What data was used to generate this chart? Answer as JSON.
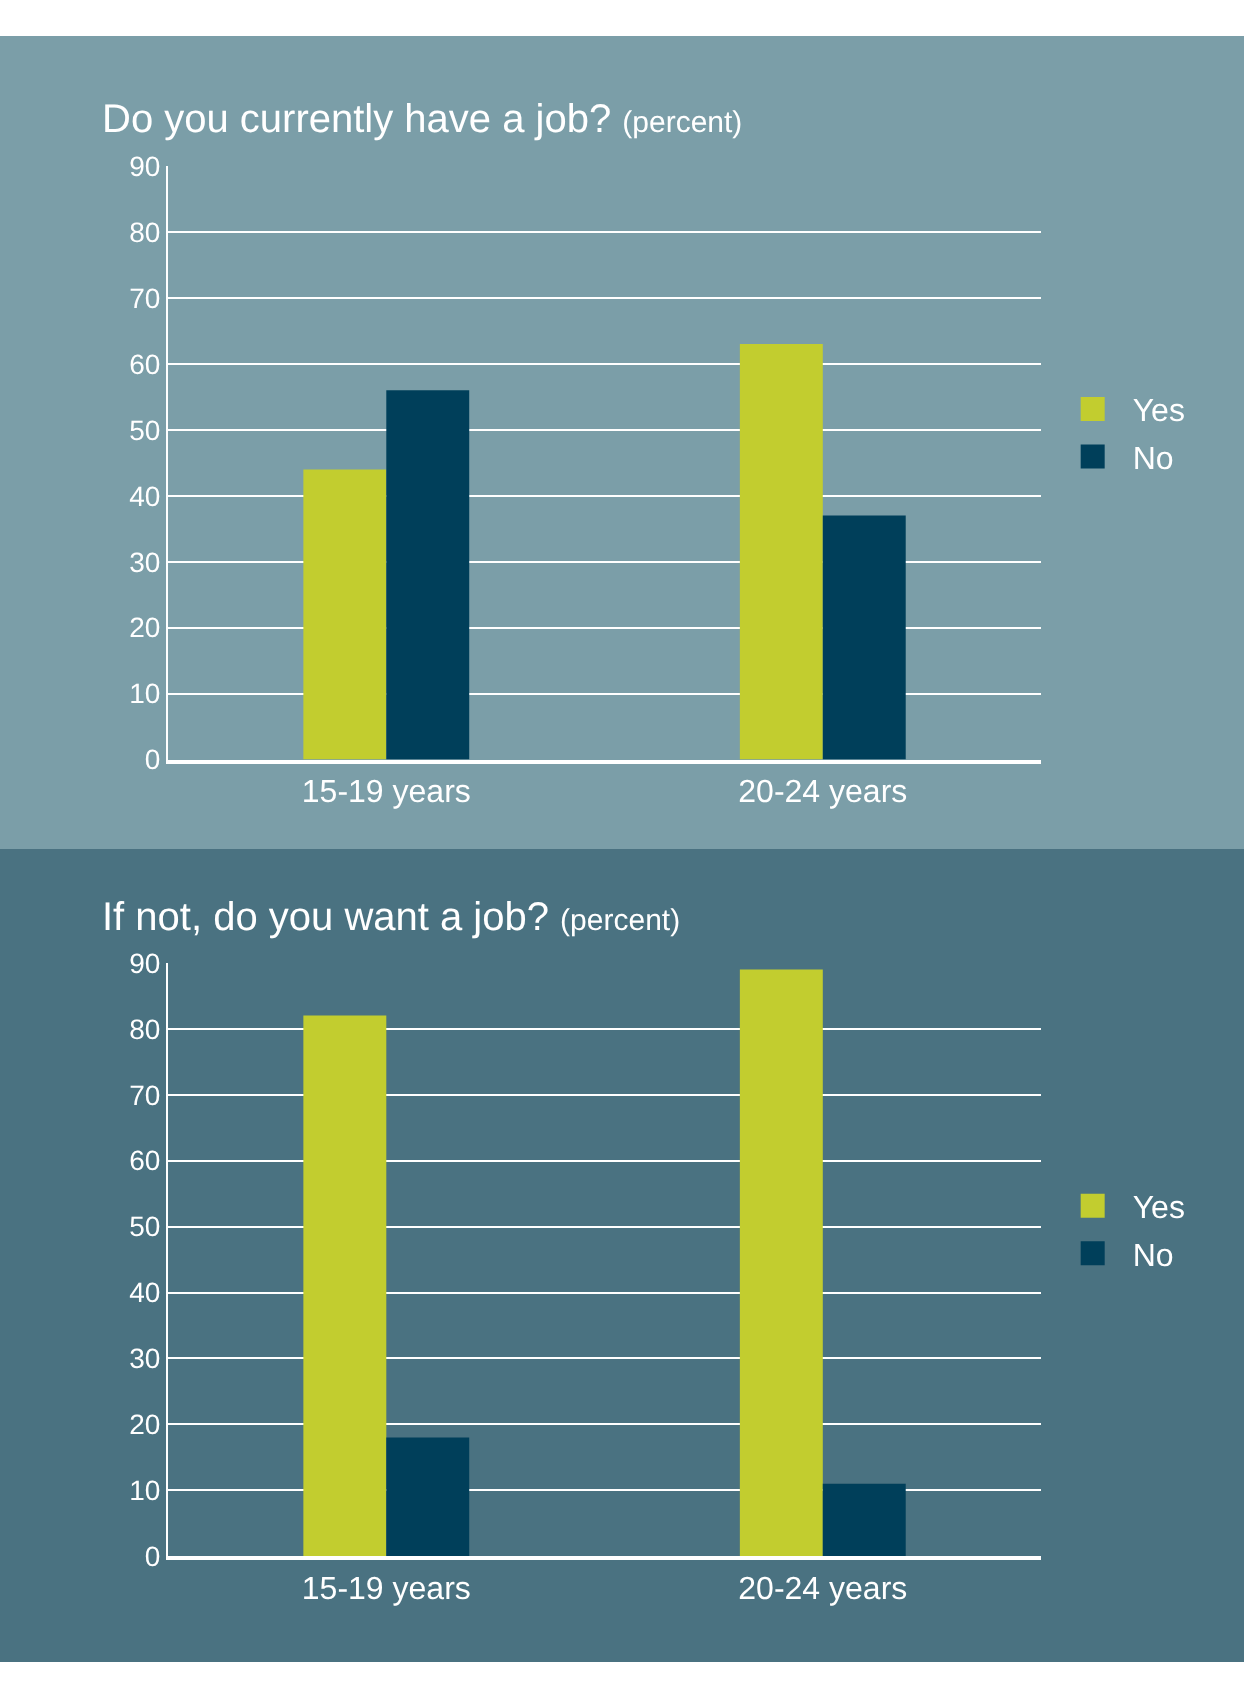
{
  "chart_data": [
    {
      "type": "bar",
      "title": "Do you currently have a job?",
      "subtitle": "(percent)",
      "categories": [
        "15-19 years",
        "20-24 years"
      ],
      "series": [
        {
          "name": "Yes",
          "color": "#c2cd2f",
          "values": [
            44,
            63
          ]
        },
        {
          "name": "No",
          "color": "#003f5a",
          "values": [
            56,
            37
          ]
        }
      ],
      "ylim": [
        0,
        90
      ],
      "yticks": [
        0,
        10,
        20,
        30,
        40,
        50,
        60,
        70,
        80,
        90
      ],
      "grid": "y",
      "legend": "right"
    },
    {
      "type": "bar",
      "title": "If not, do you want a job?",
      "subtitle": "(percent)",
      "categories": [
        "15-19 years",
        "20-24 years"
      ],
      "series": [
        {
          "name": "Yes",
          "color": "#c2cd2f",
          "values": [
            82,
            89
          ]
        },
        {
          "name": "No",
          "color": "#003f5a",
          "values": [
            18,
            11
          ]
        }
      ],
      "ylim": [
        0,
        90
      ],
      "yticks": [
        0,
        10,
        20,
        30,
        40,
        50,
        60,
        70,
        80,
        90
      ],
      "grid": "y",
      "legend": "right"
    }
  ]
}
